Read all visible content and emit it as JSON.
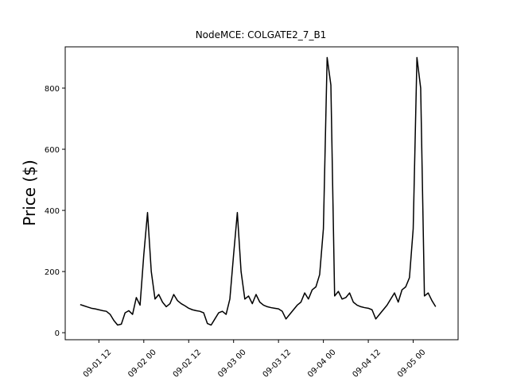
{
  "chart_data": {
    "type": "line",
    "title": "NodeMCE: COLGATE2_7_B1",
    "y_label": "Price ($)",
    "color": "#000000",
    "x": [
      "09-01 07",
      "09-01 08",
      "09-01 09",
      "09-01 10",
      "09-01 11",
      "09-01 12",
      "09-01 13",
      "09-01 14",
      "09-01 15",
      "09-01 16",
      "09-01 17",
      "09-01 18",
      "09-01 19",
      "09-01 20",
      "09-01 21",
      "09-01 22",
      "09-01 23",
      "09-02 00",
      "09-02 01",
      "09-02 02",
      "09-02 03",
      "09-02 04",
      "09-02 05",
      "09-02 06",
      "09-02 07",
      "09-02 08",
      "09-02 09",
      "09-02 10",
      "09-02 11",
      "09-02 12",
      "09-02 13",
      "09-02 14",
      "09-02 15",
      "09-02 16",
      "09-02 17",
      "09-02 18",
      "09-02 19",
      "09-02 20",
      "09-02 21",
      "09-02 22",
      "09-02 23",
      "09-03 00",
      "09-03 01",
      "09-03 02",
      "09-03 03",
      "09-03 04",
      "09-03 05",
      "09-03 06",
      "09-03 07",
      "09-03 08",
      "09-03 09",
      "09-03 10",
      "09-03 11",
      "09-03 12",
      "09-03 13",
      "09-03 14",
      "09-03 15",
      "09-03 16",
      "09-03 17",
      "09-03 18",
      "09-03 19",
      "09-03 20",
      "09-03 21",
      "09-03 22",
      "09-03 23",
      "09-04 00",
      "09-04 01",
      "09-04 02",
      "09-04 03",
      "09-04 04",
      "09-04 05",
      "09-04 06",
      "09-04 07",
      "09-04 08",
      "09-04 09",
      "09-04 10",
      "09-04 11",
      "09-04 12",
      "09-04 13",
      "09-04 14",
      "09-04 15",
      "09-04 16",
      "09-04 17",
      "09-04 18",
      "09-04 19",
      "09-04 20",
      "09-04 21",
      "09-04 22",
      "09-04 23",
      "09-05 00",
      "09-05 01",
      "09-05 02",
      "09-05 03",
      "09-05 04",
      "09-05 05",
      "09-05 06"
    ],
    "values": [
      92,
      88,
      84,
      80,
      78,
      75,
      72,
      70,
      60,
      40,
      25,
      28,
      65,
      72,
      60,
      115,
      90,
      255,
      393,
      200,
      110,
      125,
      100,
      85,
      95,
      125,
      105,
      95,
      88,
      80,
      75,
      72,
      70,
      65,
      30,
      25,
      45,
      65,
      70,
      60,
      110,
      255,
      393,
      200,
      110,
      120,
      95,
      125,
      100,
      90,
      85,
      82,
      80,
      78,
      70,
      45,
      60,
      75,
      90,
      100,
      130,
      110,
      140,
      150,
      190,
      340,
      900,
      810,
      120,
      135,
      110,
      115,
      130,
      100,
      90,
      85,
      82,
      80,
      75,
      45,
      60,
      75,
      90,
      110,
      130,
      100,
      140,
      150,
      180,
      340,
      900,
      800,
      120,
      130,
      105,
      85
    ],
    "xlim": [
      "09-01 03",
      "09-05 12"
    ],
    "xticks": [
      "09-01 12",
      "09-02 00",
      "09-02 12",
      "09-03 00",
      "09-03 12",
      "09-04 00",
      "09-04 12",
      "09-05 00"
    ],
    "ylim": [
      -23,
      935
    ],
    "yticks": [
      0,
      200,
      400,
      600,
      800
    ]
  }
}
